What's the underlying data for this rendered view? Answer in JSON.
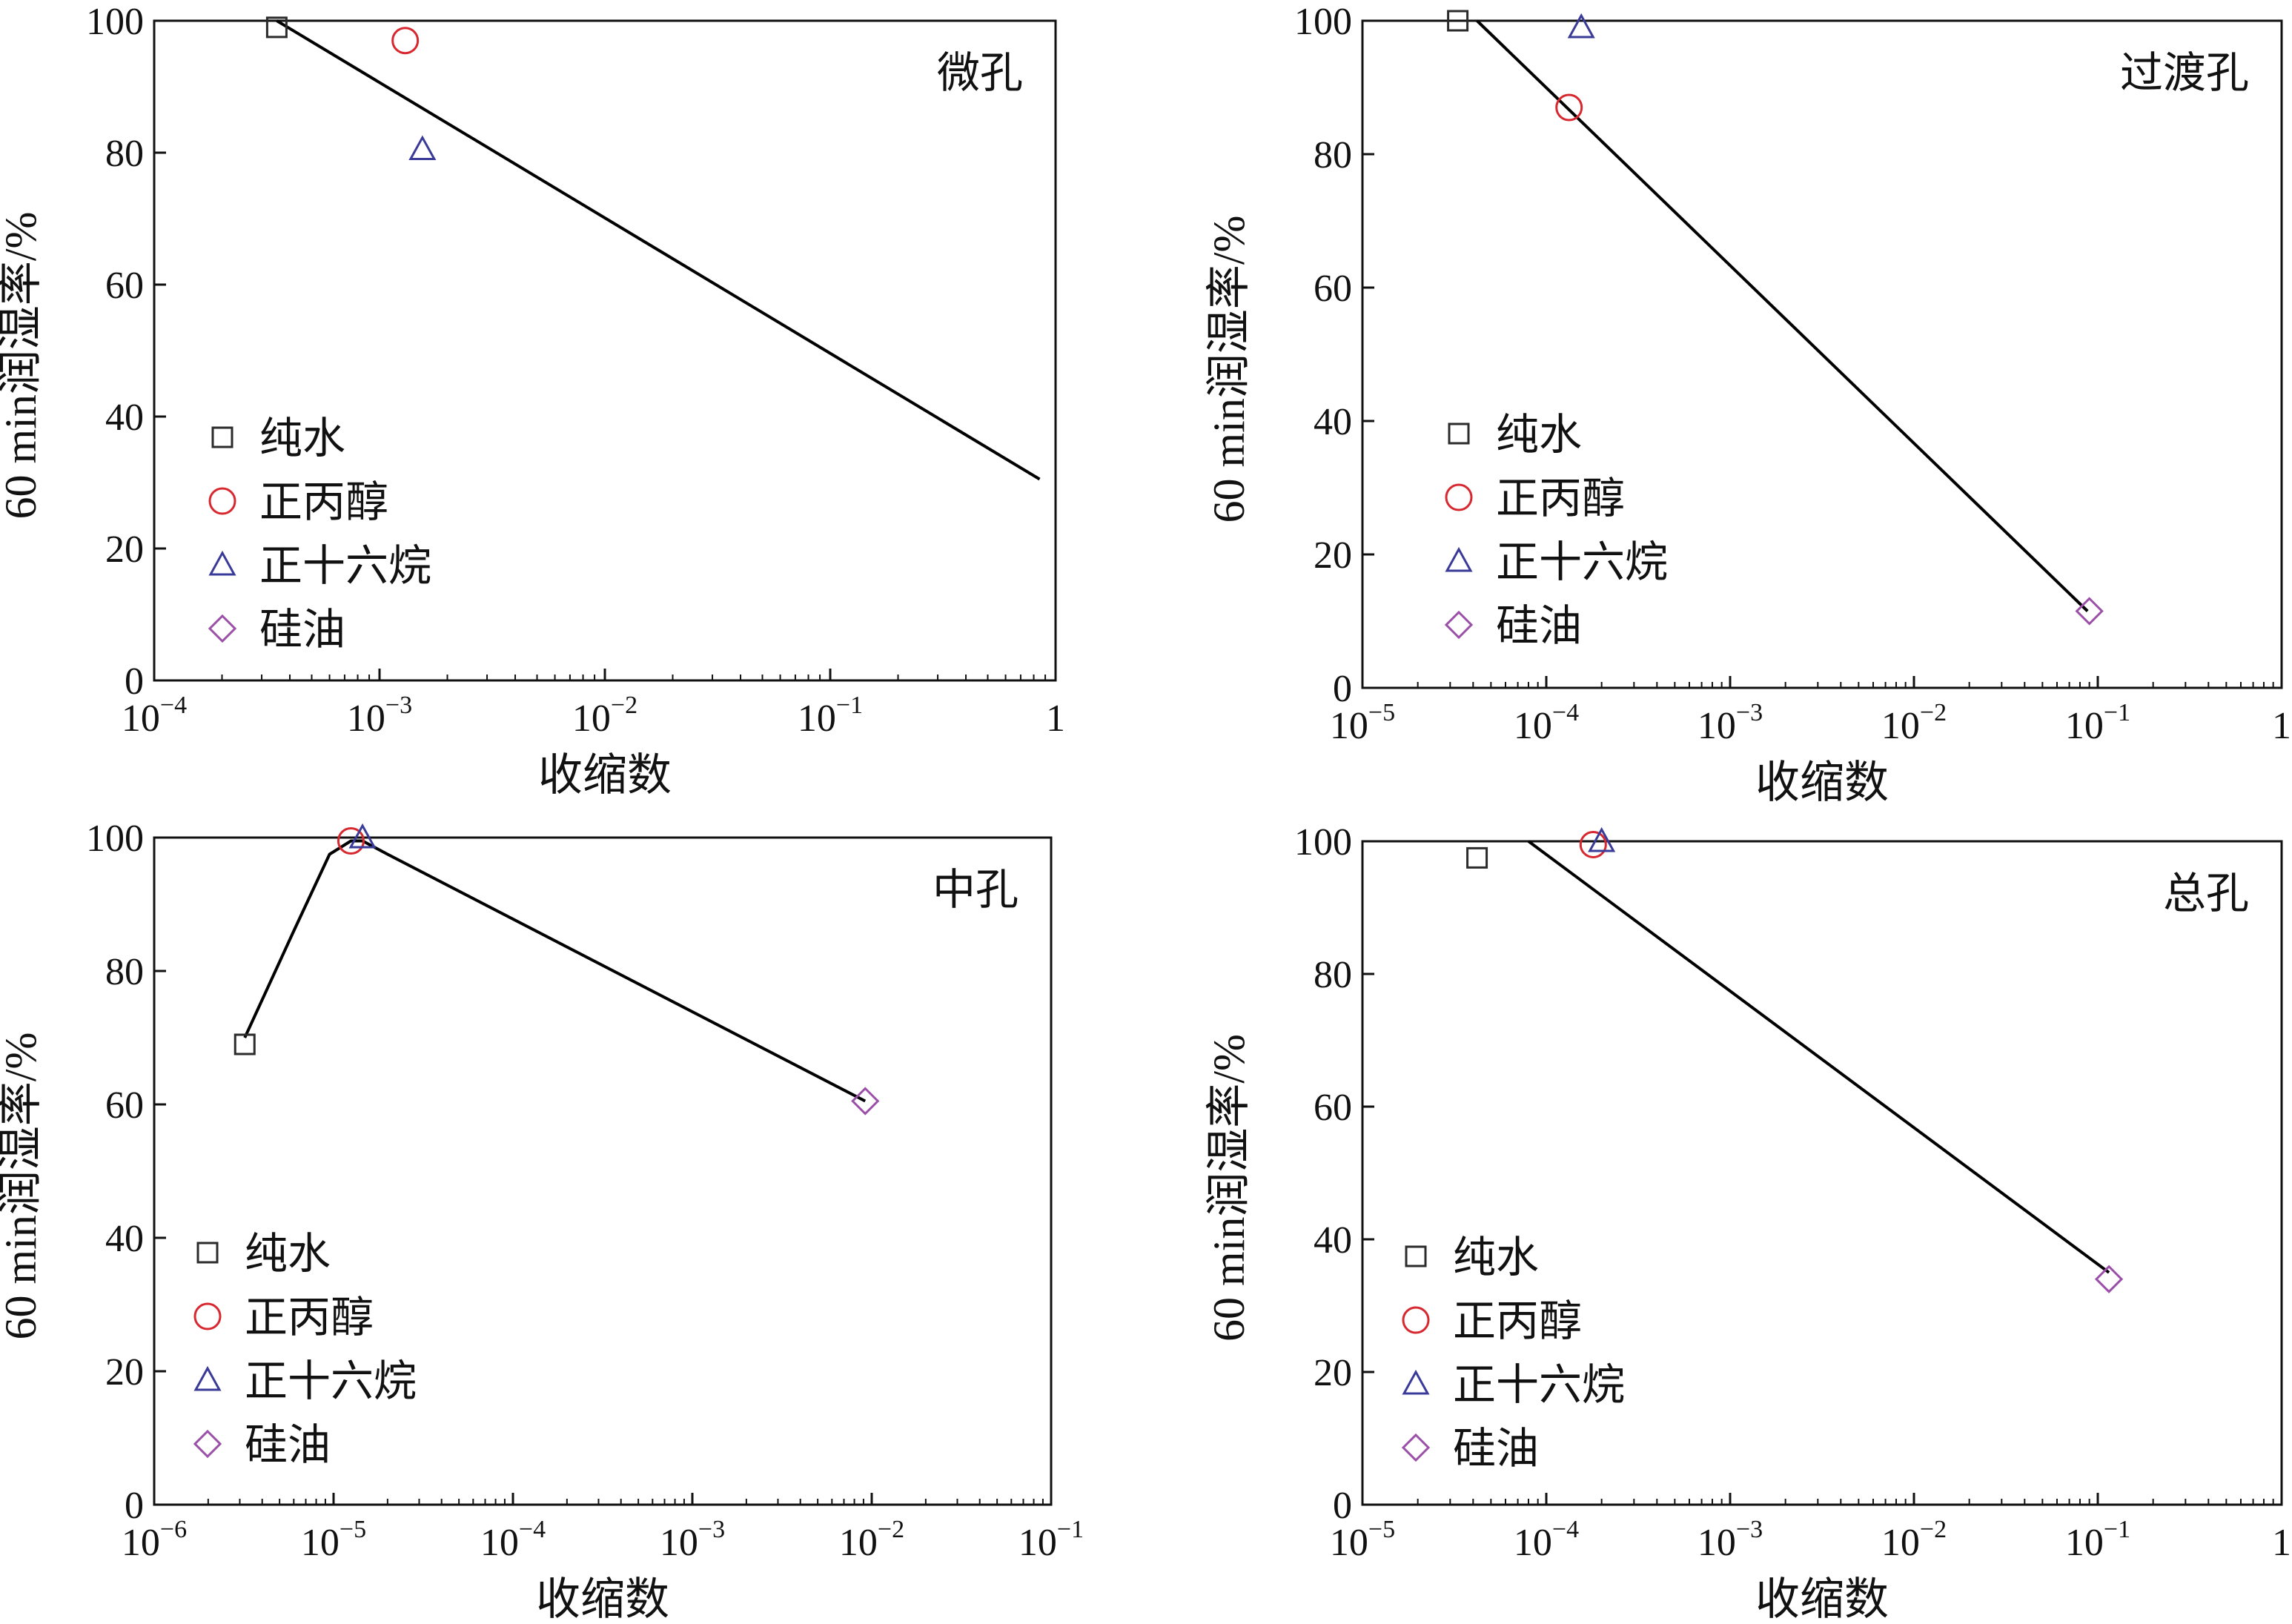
{
  "colors": {
    "axis": "#111111",
    "fit_line": "#000000",
    "marker_pure_water": "#2b2b2b",
    "marker_propanol": "#d8282f",
    "marker_hexadecane": "#3a3a98",
    "marker_silicone_oil": "#9b4fa8"
  },
  "legend_entries": [
    {
      "label": "纯水",
      "marker": "square"
    },
    {
      "label": "正丙醇",
      "marker": "circle"
    },
    {
      "label": "正十六烷",
      "marker": "triangle"
    },
    {
      "label": "硅油",
      "marker": "diamond"
    }
  ],
  "chart_data": [
    {
      "type": "scatter",
      "panel_label": "微孔",
      "xlabel": "收缩数",
      "ylabel": "60 min润湿率/%",
      "x_scale": "log",
      "xlim": [
        0.0001,
        1
      ],
      "ylim": [
        0,
        100
      ],
      "x_ticks": [
        {
          "value": 0.0001,
          "base": "10",
          "exp": "−4"
        },
        {
          "value": 0.001,
          "base": "10",
          "exp": "−3"
        },
        {
          "value": 0.01,
          "base": "10",
          "exp": "−2"
        },
        {
          "value": 0.1,
          "base": "10",
          "exp": "−1"
        },
        {
          "value": 1,
          "base": "1",
          "exp": ""
        }
      ],
      "y_ticks": [
        0,
        20,
        40,
        60,
        80,
        100
      ],
      "series": [
        {
          "name": "纯水",
          "marker": "square",
          "points": [
            {
              "x": 0.00035,
              "y": 99.0
            }
          ]
        },
        {
          "name": "正丙醇",
          "marker": "circle",
          "points": [
            {
              "x": 0.0013,
              "y": 97.0
            }
          ]
        },
        {
          "name": "正十六烷",
          "marker": "triangle",
          "points": [
            {
              "x": 0.00155,
              "y": 80.5
            }
          ]
        }
      ],
      "fit_line": [
        {
          "x": 0.00035,
          "y": 100
        },
        {
          "x": 0.85,
          "y": 30.5
        }
      ]
    },
    {
      "type": "scatter",
      "panel_label": "过渡孔",
      "xlabel": "收缩数",
      "ylabel": "60 min润湿率/%",
      "x_scale": "log",
      "xlim": [
        1e-05,
        1
      ],
      "ylim": [
        0,
        100
      ],
      "x_ticks": [
        {
          "value": 1e-05,
          "base": "10",
          "exp": "−5"
        },
        {
          "value": 0.0001,
          "base": "10",
          "exp": "−4"
        },
        {
          "value": 0.001,
          "base": "10",
          "exp": "−3"
        },
        {
          "value": 0.01,
          "base": "10",
          "exp": "−2"
        },
        {
          "value": 0.1,
          "base": "10",
          "exp": "−1"
        },
        {
          "value": 1,
          "base": "1",
          "exp": ""
        }
      ],
      "y_ticks": [
        0,
        20,
        40,
        60,
        80,
        100
      ],
      "series": [
        {
          "name": "纯水",
          "marker": "square",
          "points": [
            {
              "x": 3.3e-05,
              "y": 100
            }
          ]
        },
        {
          "name": "正丙醇",
          "marker": "circle",
          "points": [
            {
              "x": 0.000133,
              "y": 87
            }
          ]
        },
        {
          "name": "正十六烷",
          "marker": "triangle",
          "points": [
            {
              "x": 0.000155,
              "y": 99
            }
          ]
        },
        {
          "name": "硅油",
          "marker": "diamond",
          "points": [
            {
              "x": 0.09,
              "y": 11.5
            }
          ]
        }
      ],
      "fit_line": [
        {
          "x": 4.2e-05,
          "y": 100
        },
        {
          "x": 0.088,
          "y": 11.5
        }
      ]
    },
    {
      "type": "scatter",
      "panel_label": "中孔",
      "xlabel": "收缩数",
      "ylabel": "60 min润湿率/%",
      "x_scale": "log",
      "xlim": [
        1e-06,
        0.1
      ],
      "ylim": [
        0,
        100
      ],
      "x_ticks": [
        {
          "value": 1e-06,
          "base": "10",
          "exp": "−6"
        },
        {
          "value": 1e-05,
          "base": "10",
          "exp": "−5"
        },
        {
          "value": 0.0001,
          "base": "10",
          "exp": "−4"
        },
        {
          "value": 0.001,
          "base": "10",
          "exp": "−3"
        },
        {
          "value": 0.01,
          "base": "10",
          "exp": "−2"
        },
        {
          "value": 0.1,
          "base": "10",
          "exp": "−1"
        }
      ],
      "y_ticks": [
        0,
        20,
        40,
        60,
        80,
        100
      ],
      "series": [
        {
          "name": "纯水",
          "marker": "square",
          "points": [
            {
              "x": 3.2e-06,
              "y": 69
            }
          ]
        },
        {
          "name": "正丙醇",
          "marker": "circle",
          "points": [
            {
              "x": 1.25e-05,
              "y": 99.5
            }
          ]
        },
        {
          "name": "正十六烷",
          "marker": "triangle",
          "points": [
            {
              "x": 1.45e-05,
              "y": 100
            }
          ]
        },
        {
          "name": "硅油",
          "marker": "diamond",
          "points": [
            {
              "x": 0.0092,
              "y": 60.5
            }
          ]
        }
      ],
      "fit_line": [
        {
          "x": 3.2e-06,
          "y": 70
        },
        {
          "x": 6e-06,
          "y": 86
        },
        {
          "x": 9.5e-06,
          "y": 97.5
        },
        {
          "x": 1.25e-05,
          "y": 99.5
        },
        {
          "x": 1.45e-05,
          "y": 99.5
        },
        {
          "x": 2e-05,
          "y": 97.5
        },
        {
          "x": 0.0092,
          "y": 60.5
        }
      ]
    },
    {
      "type": "scatter",
      "panel_label": "总孔",
      "xlabel": "收缩数",
      "ylabel": "60 min润湿率/%",
      "x_scale": "log",
      "xlim": [
        1e-05,
        1
      ],
      "ylim": [
        0,
        100
      ],
      "x_ticks": [
        {
          "value": 1e-05,
          "base": "10",
          "exp": "−5"
        },
        {
          "value": 0.0001,
          "base": "10",
          "exp": "−4"
        },
        {
          "value": 0.001,
          "base": "10",
          "exp": "−3"
        },
        {
          "value": 0.01,
          "base": "10",
          "exp": "−2"
        },
        {
          "value": 0.1,
          "base": "10",
          "exp": "−1"
        },
        {
          "value": 1,
          "base": "1",
          "exp": ""
        }
      ],
      "y_ticks": [
        0,
        20,
        40,
        60,
        80,
        100
      ],
      "series": [
        {
          "name": "纯水",
          "marker": "square",
          "points": [
            {
              "x": 4.2e-05,
              "y": 97.5
            }
          ]
        },
        {
          "name": "正丙醇",
          "marker": "circle",
          "points": [
            {
              "x": 0.00018,
              "y": 99.5
            }
          ]
        },
        {
          "name": "正十六烷",
          "marker": "triangle",
          "points": [
            {
              "x": 0.0002,
              "y": 100
            }
          ]
        },
        {
          "name": "硅油",
          "marker": "diamond",
          "points": [
            {
              "x": 0.115,
              "y": 34
            }
          ]
        }
      ],
      "fit_line": [
        {
          "x": 8e-05,
          "y": 100
        },
        {
          "x": 0.115,
          "y": 35
        }
      ]
    }
  ]
}
